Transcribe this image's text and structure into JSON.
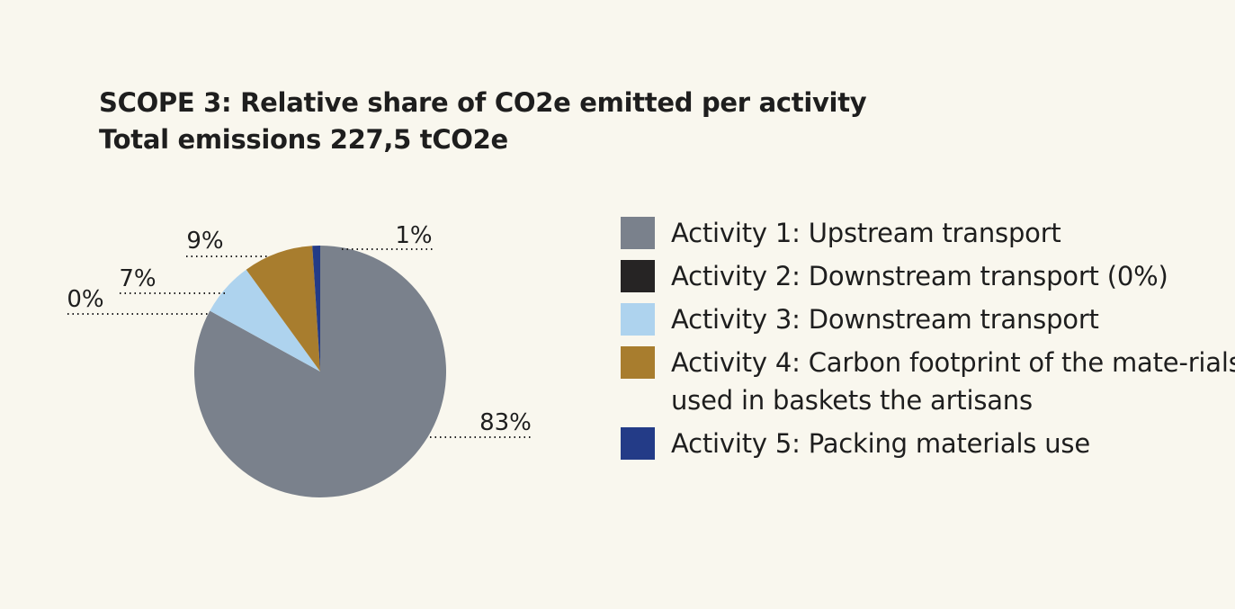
{
  "title": {
    "line1": "SCOPE 3: Relative share of CO2e emitted per activity",
    "line2": "Total emissions 227,5 tCO2e"
  },
  "chart_data": {
    "type": "pie",
    "title": "SCOPE 3: Relative share of CO2e emitted per activity",
    "subtitle": "Total emissions 227,5 tCO2e",
    "unit": "%",
    "legend_position": "right",
    "slices": [
      {
        "label": "Activity 1: Upstream transport",
        "value": 83,
        "display": "83%",
        "color": "#7a818c"
      },
      {
        "label": "Activity 2: Downstream transport (0%)",
        "value": 0,
        "display": "0%",
        "color": "#262424"
      },
      {
        "label": "Activity 3: Downstream transport",
        "value": 7,
        "display": "7%",
        "color": "#aed3ee"
      },
      {
        "label": "Activity 4: Carbon footprint of the mate-rials used in baskets the artisans",
        "value": 9,
        "display": "9%",
        "color": "#a87d2e"
      },
      {
        "label": "Activity 5: Packing materials use",
        "value": 1,
        "display": "1%",
        "color": "#233b87"
      }
    ]
  },
  "legend": [
    {
      "label": "Activity 1: Upstream transport",
      "color": "#7a818c"
    },
    {
      "label": "Activity 2: Downstream transport (0%)",
      "color": "#262424"
    },
    {
      "label": "Activity 3: Downstream transport",
      "color": "#aed3ee"
    },
    {
      "label": "Activity 4: Carbon footprint of the mate-rials used in baskets the artisans",
      "color": "#a87d2e"
    },
    {
      "label": "Activity 5: Packing materials use",
      "color": "#233b87"
    }
  ]
}
